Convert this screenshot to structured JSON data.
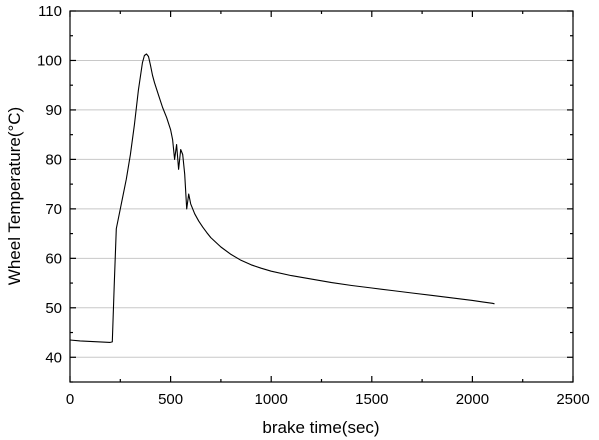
{
  "chart_data": {
    "type": "line",
    "title": "",
    "xlabel": "brake time(sec)",
    "ylabel": "Wheel Temperature(°C)",
    "xlim": [
      0,
      2500
    ],
    "ylim": [
      35,
      110
    ],
    "x_ticks": [
      0,
      500,
      1000,
      1500,
      2000,
      2500
    ],
    "y_ticks": [
      40,
      50,
      60,
      70,
      80,
      90,
      100,
      110
    ],
    "grid": "horizontal",
    "legend": "none",
    "series": [
      {
        "color": "#000000",
        "x": [
          0,
          50,
          100,
          150,
          200,
          210,
          220,
          230,
          240,
          260,
          280,
          300,
          320,
          340,
          360,
          370,
          380,
          390,
          400,
          410,
          420,
          440,
          460,
          480,
          500,
          510,
          520,
          530,
          540,
          550,
          560,
          570,
          580,
          590,
          600,
          620,
          640,
          660,
          680,
          700,
          750,
          800,
          850,
          900,
          950,
          1000,
          1100,
          1200,
          1300,
          1400,
          1500,
          1600,
          1700,
          1800,
          1900,
          2000,
          2050,
          2100,
          2110
        ],
        "y": [
          43.5,
          43.3,
          43.2,
          43.1,
          43.0,
          43.1,
          55.0,
          66.0,
          68.0,
          72.0,
          76.0,
          81.0,
          87.0,
          94.0,
          99.5,
          101.0,
          101.3,
          100.8,
          99.0,
          97.0,
          95.5,
          93.0,
          90.5,
          88.5,
          86.0,
          84.0,
          80.0,
          83.0,
          78.0,
          82.0,
          81.0,
          77.0,
          70.0,
          73.0,
          71.0,
          69.0,
          67.5,
          66.3,
          65.2,
          64.2,
          62.3,
          60.8,
          59.6,
          58.7,
          58.0,
          57.4,
          56.5,
          55.8,
          55.1,
          54.5,
          54.0,
          53.5,
          53.0,
          52.5,
          52.0,
          51.5,
          51.2,
          50.9,
          50.8
        ]
      }
    ]
  }
}
